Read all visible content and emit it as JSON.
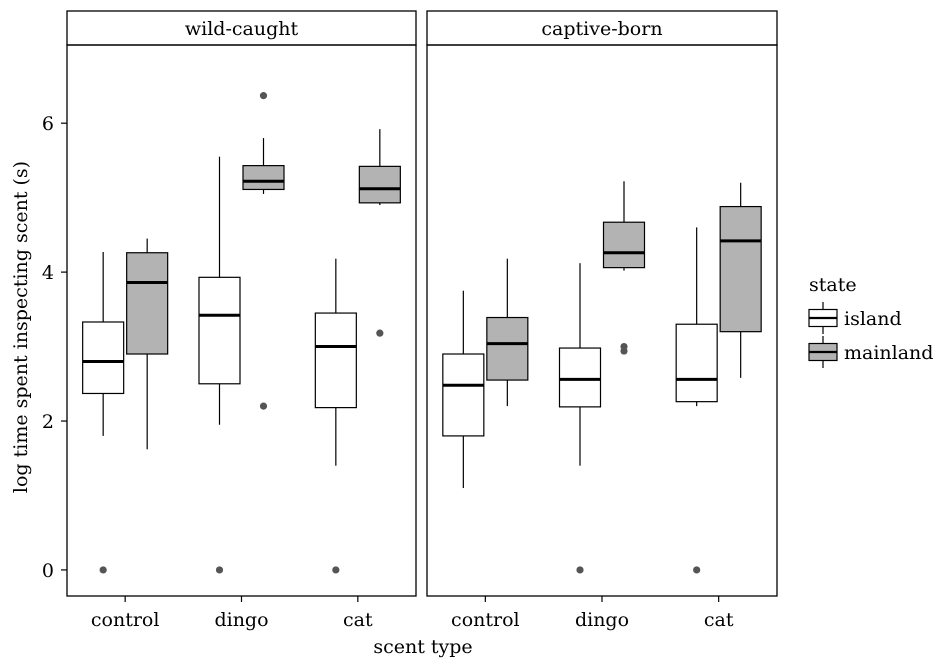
{
  "chart_data": {
    "type": "boxplot",
    "xlabel": "scent type",
    "ylabel": "log time spent inspecting scent (s)",
    "ylim": [
      -0.35,
      7.05
    ],
    "yticks": [
      0,
      2,
      4,
      6
    ],
    "categories": [
      "control",
      "dingo",
      "cat"
    ],
    "legend": {
      "title": "state",
      "placement": "right",
      "entries": [
        {
          "name": "island",
          "fill": "#ffffff"
        },
        {
          "name": "mainland",
          "fill": "#b3b3b3"
        }
      ]
    },
    "panels": [
      {
        "name": "wild-caught",
        "boxes": [
          {
            "category": "control",
            "state": "island",
            "whisker_low": 1.8,
            "q1": 2.37,
            "median": 2.8,
            "q3": 3.33,
            "whisker_high": 4.27,
            "outliers": [
              0
            ]
          },
          {
            "category": "control",
            "state": "mainland",
            "whisker_low": 1.62,
            "q1": 2.9,
            "median": 3.86,
            "q3": 4.26,
            "whisker_high": 4.45,
            "outliers": []
          },
          {
            "category": "dingo",
            "state": "island",
            "whisker_low": 1.95,
            "q1": 2.5,
            "median": 3.42,
            "q3": 3.93,
            "whisker_high": 5.55,
            "outliers": [
              0
            ]
          },
          {
            "category": "dingo",
            "state": "mainland",
            "whisker_low": 5.05,
            "q1": 5.11,
            "median": 5.22,
            "q3": 5.43,
            "whisker_high": 5.8,
            "outliers": [
              6.37,
              2.2
            ]
          },
          {
            "category": "cat",
            "state": "island",
            "whisker_low": 1.4,
            "q1": 2.18,
            "median": 3.0,
            "q3": 3.45,
            "whisker_high": 4.18,
            "outliers": [
              0
            ]
          },
          {
            "category": "cat",
            "state": "mainland",
            "whisker_low": 4.9,
            "q1": 4.93,
            "median": 5.12,
            "q3": 5.42,
            "whisker_high": 5.92,
            "outliers": [
              3.18
            ]
          }
        ]
      },
      {
        "name": "captive-born",
        "boxes": [
          {
            "category": "control",
            "state": "island",
            "whisker_low": 1.1,
            "q1": 1.8,
            "median": 2.48,
            "q3": 2.9,
            "whisker_high": 3.75,
            "outliers": []
          },
          {
            "category": "control",
            "state": "mainland",
            "whisker_low": 2.2,
            "q1": 2.55,
            "median": 3.04,
            "q3": 3.39,
            "whisker_high": 4.18,
            "outliers": []
          },
          {
            "category": "dingo",
            "state": "island",
            "whisker_low": 1.4,
            "q1": 2.19,
            "median": 2.56,
            "q3": 2.98,
            "whisker_high": 4.12,
            "outliers": [
              0
            ]
          },
          {
            "category": "dingo",
            "state": "mainland",
            "whisker_low": 4.02,
            "q1": 4.06,
            "median": 4.26,
            "q3": 4.67,
            "whisker_high": 5.22,
            "outliers": [
              3.0,
              2.94
            ]
          },
          {
            "category": "cat",
            "state": "island",
            "whisker_low": 2.2,
            "q1": 2.26,
            "median": 2.56,
            "q3": 3.3,
            "whisker_high": 4.6,
            "outliers": [
              0
            ]
          },
          {
            "category": "cat",
            "state": "mainland",
            "whisker_low": 2.58,
            "q1": 3.2,
            "median": 4.42,
            "q3": 4.88,
            "whisker_high": 5.2,
            "outliers": []
          }
        ]
      }
    ]
  }
}
